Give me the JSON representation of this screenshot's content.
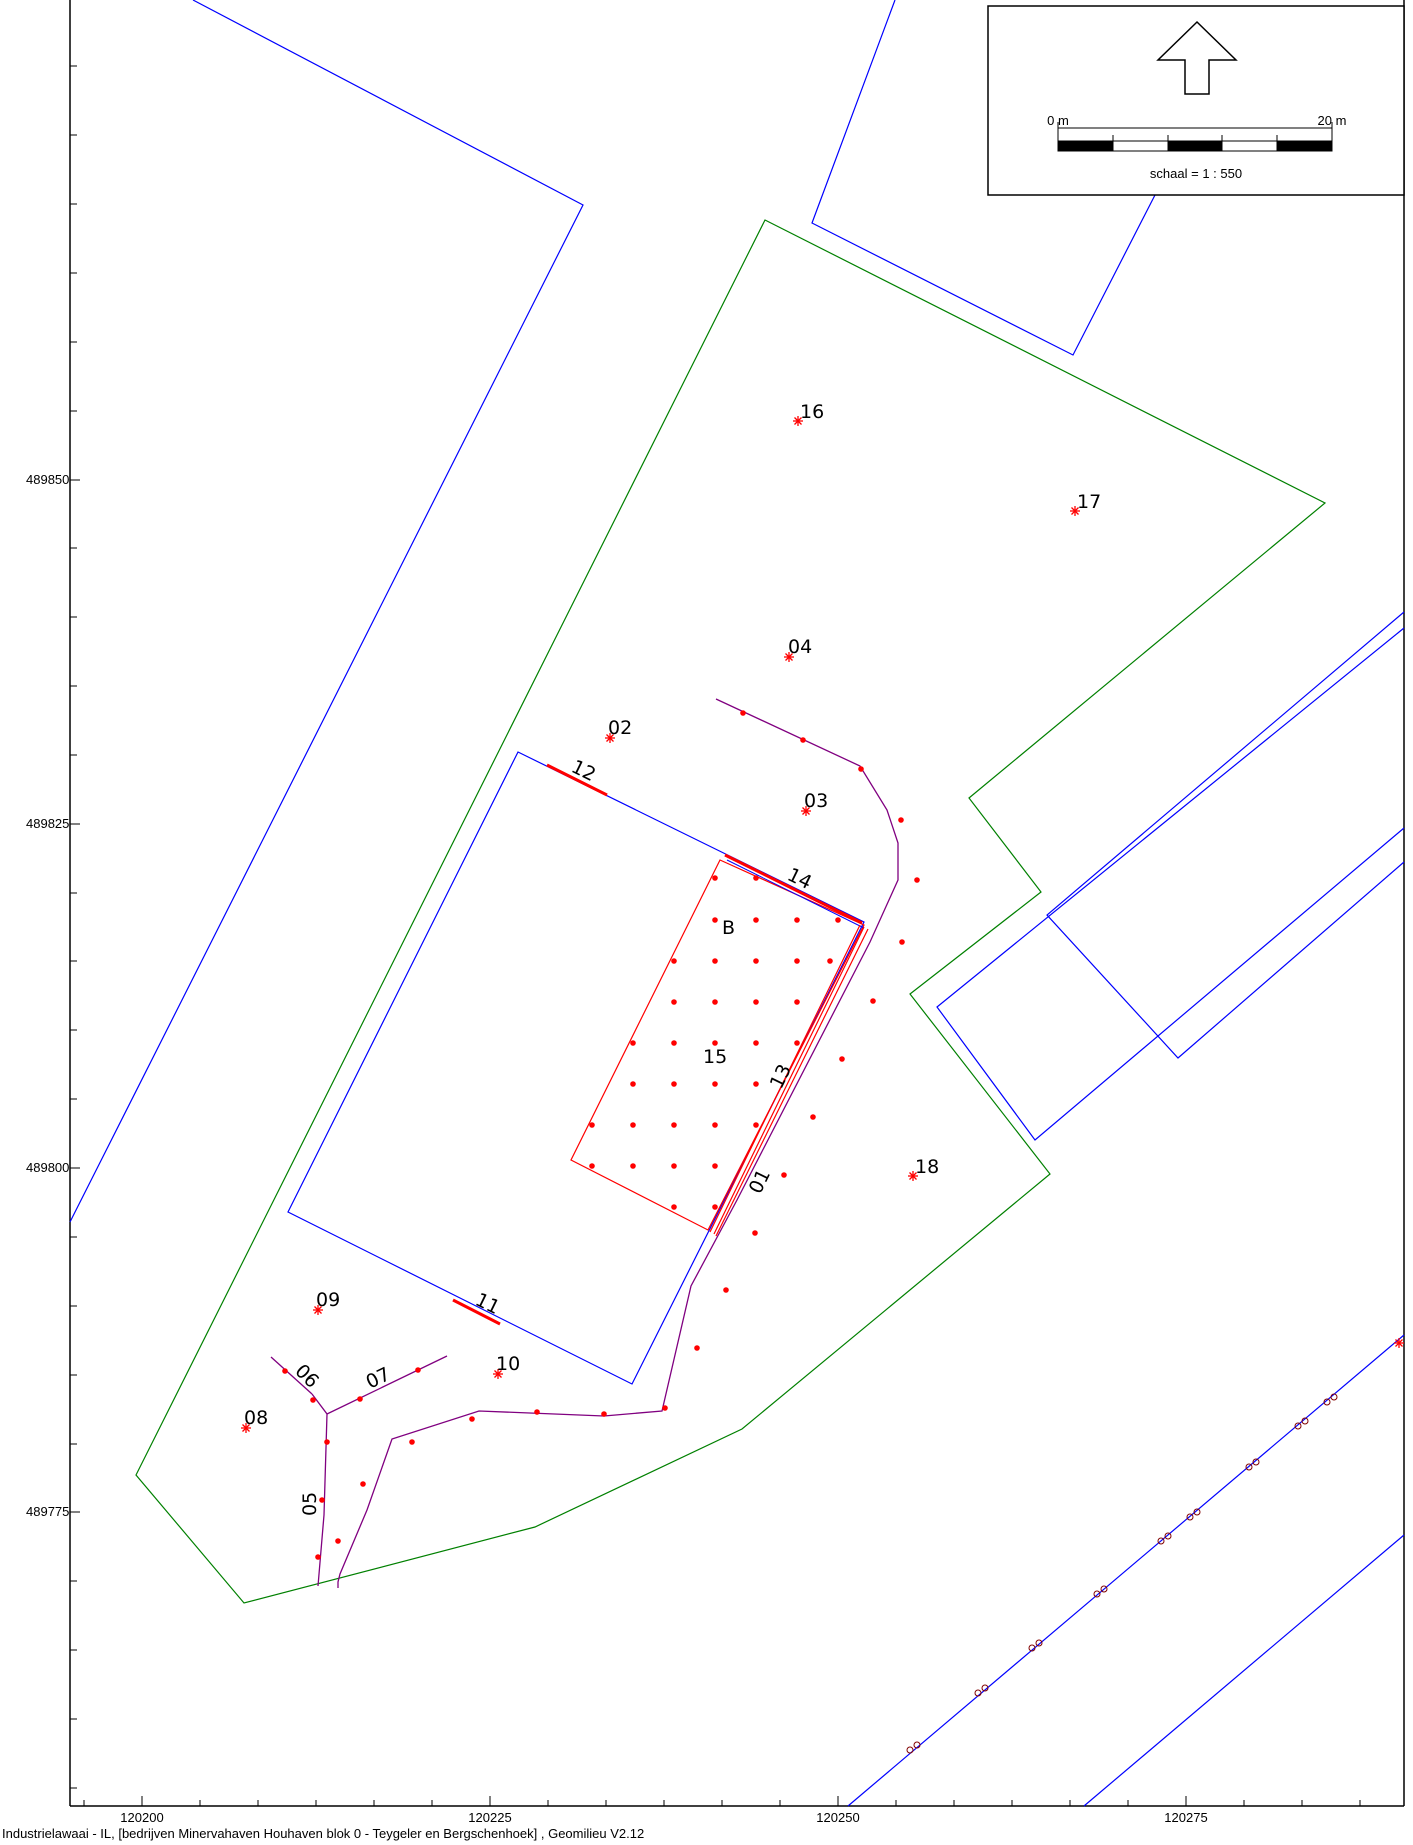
{
  "map": {
    "colors": {
      "building": "#0000ff",
      "site_boundary": "#008000",
      "source_area": "#ff0000",
      "road": "#800080",
      "point": "#ff0000",
      "frame": "#000000"
    },
    "x_ticks": [
      "120200",
      "120225",
      "120250",
      "120275"
    ],
    "y_ticks": [
      "489850",
      "489825",
      "489800",
      "489775"
    ],
    "labels": {
      "l01": "01",
      "l02": "02",
      "l03": "03",
      "l04": "04",
      "l05": "05",
      "l06": "06",
      "l07": "07",
      "l08": "08",
      "l09": "09",
      "l10": "10",
      "l11": "11",
      "l12": "12",
      "l13": "13",
      "l14": "14",
      "l15": "15",
      "l16": "16",
      "l17": "17",
      "l18": "18",
      "lB": "B"
    },
    "legend": {
      "north_arrow": "north-arrow-icon",
      "scale_start": "0 m",
      "scale_end": "20 m",
      "scale_text": "schaal = 1 : 550"
    },
    "footer": "Industrielawaai - IL, [bedrijven Minervahaven Houhaven blok 0 - Teygeler en Bergschenhoek] , Geomilieu V2.12"
  }
}
